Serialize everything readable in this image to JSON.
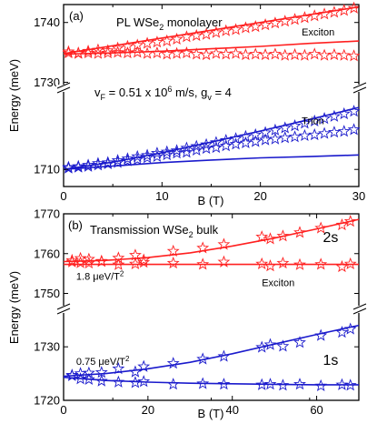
{
  "colors": {
    "red": "#ff2020",
    "blue": "#1a1acc"
  },
  "chart_data": [
    {
      "type": "scatter",
      "panel_label": "(a)",
      "title": "PL WSe2 monolayer",
      "title_main": "PL WSe",
      "title_sub": "2",
      "title_rest": " monolayer",
      "xlabel": "B (T)",
      "ylabel": "Energy (meV)",
      "xlim": [
        0,
        30
      ],
      "ylim_upper": [
        1729,
        1743
      ],
      "ylim_lower": [
        1706,
        1729
      ],
      "axis_break": true,
      "xticks": [
        "0",
        "10",
        "20",
        "30"
      ],
      "yticks": [
        "1710",
        "1730",
        "1740"
      ],
      "annotation_parts": {
        "p1": "v",
        "p1sub": "F",
        "p2": " = 0.51 x 10",
        "p2sup": "6",
        "p3": " m/s, g",
        "p3sub": "v",
        "p4": " = 4"
      },
      "series": [
        {
          "name": "Exciton",
          "color": "red",
          "marker": "star-open",
          "x": [
            0.5,
            1.5,
            2.5,
            3.5,
            4.5,
            5.5,
            6.5,
            7.5,
            8.5,
            9.5,
            10.5,
            11.5,
            12.5,
            13.5,
            14.5,
            15.5,
            16.5,
            17.5,
            18.5,
            19.5,
            20.5,
            21.5,
            22.5,
            23.5,
            24.5,
            25.5,
            26.5,
            27.5,
            28.5,
            29.5
          ],
          "y": [
            1735.1,
            1734.9,
            1735.2,
            1735.4,
            1735.3,
            1735.7,
            1736.0,
            1736.2,
            1736.5,
            1736.7,
            1736.9,
            1737.2,
            1737.6,
            1737.8,
            1738.0,
            1738.3,
            1738.6,
            1738.8,
            1739.1,
            1739.3,
            1739.6,
            1739.9,
            1740.2,
            1740.5,
            1740.8,
            1741.1,
            1741.4,
            1741.7,
            1742.0,
            1742.4
          ]
        },
        {
          "name": "Exciton",
          "color": "red",
          "marker": "star-open",
          "x": [
            0.5,
            1.5,
            2.5,
            3.5,
            4.5,
            5.5,
            6.5,
            7.5,
            8.5,
            9.5,
            10.5,
            11.5,
            12.5,
            13.5,
            14.5,
            15.5,
            16.5,
            17.5,
            18.5,
            19.5,
            20.5,
            21.5,
            22.5,
            23.5,
            24.5,
            25.5,
            26.5,
            27.5,
            28.5,
            29.5
          ],
          "y": [
            1734.9,
            1734.8,
            1734.9,
            1734.8,
            1734.9,
            1735.0,
            1734.9,
            1735.0,
            1734.8,
            1734.9,
            1734.7,
            1734.8,
            1734.9,
            1734.7,
            1734.6,
            1734.8,
            1734.7,
            1734.8,
            1734.6,
            1734.7,
            1734.6,
            1734.7,
            1734.5,
            1734.6,
            1734.5,
            1734.7,
            1734.5,
            1734.6,
            1734.5,
            1734.4
          ]
        },
        {
          "name": "Trion",
          "color": "blue",
          "marker": "star-open",
          "x": [
            0.5,
            1.5,
            2.5,
            3.5,
            4.5,
            5.5,
            6.5,
            7.5,
            8.5,
            9.5,
            10.5,
            11.5,
            12.5,
            13.5,
            14.5,
            15.5,
            16.5,
            17.5,
            18.5,
            19.5,
            20.5,
            21.5,
            22.5,
            23.5,
            24.5,
            25.5,
            26.5,
            27.5,
            28.5,
            29.5
          ],
          "y": [
            1710.5,
            1710.7,
            1711.0,
            1711.4,
            1711.6,
            1712.1,
            1712.5,
            1713.0,
            1713.3,
            1713.8,
            1714.1,
            1714.4,
            1715.0,
            1715.4,
            1715.8,
            1716.3,
            1716.8,
            1717.2,
            1717.7,
            1718.1,
            1718.6,
            1719.2,
            1719.7,
            1720.2,
            1720.8,
            1721.3,
            1721.9,
            1722.4,
            1723.0,
            1723.6
          ]
        },
        {
          "name": "Trion",
          "color": "blue",
          "marker": "star-open",
          "x": [
            0.5,
            1.5,
            2.5,
            3.5,
            4.5,
            5.5,
            6.5,
            7.5,
            8.5,
            9.5,
            10.5,
            11.5,
            12.5,
            13.5,
            14.5,
            15.5,
            16.5,
            17.5,
            18.5,
            19.5,
            20.5,
            21.5,
            22.5,
            23.5,
            24.5,
            25.5,
            26.5,
            27.5,
            28.5,
            29.5
          ],
          "y": [
            1710.3,
            1710.5,
            1710.7,
            1711.0,
            1711.3,
            1711.6,
            1712.0,
            1712.3,
            1712.7,
            1713.0,
            1713.4,
            1713.8,
            1714.0,
            1714.5,
            1714.9,
            1715.1,
            1715.5,
            1715.9,
            1716.2,
            1716.5,
            1716.9,
            1717.1,
            1717.4,
            1717.6,
            1717.9,
            1718.1,
            1718.4,
            1718.7,
            1718.9,
            1719.3
          ]
        }
      ],
      "fits": [
        {
          "color": "red",
          "x": [
            0,
            30
          ],
          "y": [
            1734.8,
            1742.6
          ]
        },
        {
          "color": "red",
          "x": [
            0,
            5,
            10,
            15,
            20,
            25,
            30
          ],
          "y": [
            1734.7,
            1734.9,
            1735.2,
            1735.6,
            1736.0,
            1736.5,
            1736.9
          ]
        },
        {
          "color": "blue",
          "x": [
            0,
            5,
            10,
            15,
            20,
            25,
            30
          ],
          "y": [
            1710.0,
            1711.7,
            1713.9,
            1716.4,
            1719.0,
            1721.7,
            1724.5
          ]
        },
        {
          "color": "blue",
          "x": [
            0,
            5,
            10,
            15,
            20,
            25,
            30
          ],
          "y": [
            1710.0,
            1710.8,
            1711.6,
            1712.2,
            1712.7,
            1713.0,
            1713.4
          ]
        }
      ],
      "labels": [
        {
          "text": "Exciton",
          "x": 24.2,
          "y": 1737.8
        },
        {
          "text": "Trion",
          "x": 24.2,
          "y": 1720.6
        }
      ]
    },
    {
      "type": "scatter",
      "panel_label": "(b)",
      "title": "Transmission WSe2 bulk",
      "title_main": "Transmission WSe",
      "title_sub": "2",
      "title_rest": " bulk",
      "xlabel": "B (T)",
      "ylabel": "Energy (meV)",
      "xlim": [
        0,
        70
      ],
      "ylim_upper": [
        1746,
        1770
      ],
      "ylim_lower": [
        1720,
        1737
      ],
      "axis_break": true,
      "xticks": [
        "0",
        "20",
        "40",
        "60"
      ],
      "yticks": [
        "1720",
        "1730",
        "1750",
        "1760",
        "1770"
      ],
      "series": [
        {
          "name": "2s",
          "color": "red",
          "marker": "star-open",
          "x": [
            2,
            4,
            6,
            9,
            13,
            17,
            19,
            26,
            33,
            38,
            47,
            49,
            52,
            56,
            61,
            66,
            68
          ],
          "y": [
            1758.3,
            1758.8,
            1758.6,
            1758.0,
            1758.9,
            1759.6,
            1758.4,
            1760.6,
            1761.4,
            1762.3,
            1764.2,
            1763.7,
            1764.4,
            1765.3,
            1766.4,
            1767.2,
            1768.1
          ]
        },
        {
          "name": "2s",
          "color": "red",
          "marker": "star-open",
          "x": [
            2,
            4,
            6,
            9,
            13,
            17,
            19,
            26,
            33,
            38,
            47,
            49,
            52,
            56,
            61,
            66,
            68
          ],
          "y": [
            1757.9,
            1757.7,
            1757.6,
            1758.1,
            1757.2,
            1757.4,
            1757.8,
            1757.6,
            1757.3,
            1757.9,
            1757.4,
            1756.9,
            1757.6,
            1757.2,
            1757.3,
            1756.7,
            1757.4
          ]
        },
        {
          "name": "1s",
          "color": "blue",
          "marker": "star-open",
          "x": [
            2,
            4,
            6,
            9,
            13,
            17,
            19,
            26,
            33,
            38,
            47,
            49,
            52,
            56,
            61,
            66,
            68
          ],
          "y": [
            1724.7,
            1725.0,
            1725.1,
            1725.2,
            1725.9,
            1725.3,
            1726.3,
            1726.9,
            1727.7,
            1728.2,
            1729.9,
            1730.4,
            1730.1,
            1730.8,
            1732.1,
            1732.7,
            1733.3
          ]
        },
        {
          "name": "1s",
          "color": "blue",
          "marker": "star-open",
          "x": [
            2,
            4,
            6,
            9,
            13,
            17,
            19,
            26,
            33,
            38,
            47,
            49,
            52,
            56,
            61,
            66,
            68
          ],
          "y": [
            1724.6,
            1724.0,
            1723.9,
            1723.6,
            1723.4,
            1723.3,
            1723.5,
            1723.0,
            1723.1,
            1723.0,
            1722.9,
            1723.0,
            1722.8,
            1723.0,
            1722.7,
            1722.9,
            1722.8
          ]
        }
      ],
      "fits": [
        {
          "color": "red",
          "x": [
            0,
            10,
            20,
            30,
            40,
            50,
            60,
            70
          ],
          "y": [
            1758.0,
            1758.3,
            1759.0,
            1760.2,
            1761.9,
            1763.9,
            1766.2,
            1768.6
          ]
        },
        {
          "color": "red",
          "x": [
            0,
            70
          ],
          "y": [
            1757.3,
            1757.3
          ]
        },
        {
          "color": "blue",
          "x": [
            0,
            10,
            20,
            30,
            40,
            50,
            60,
            70
          ],
          "y": [
            1724.5,
            1725.0,
            1725.9,
            1727.1,
            1728.7,
            1730.5,
            1732.3,
            1734.0
          ]
        },
        {
          "color": "blue",
          "x": [
            0,
            10,
            20,
            30,
            40,
            50,
            60,
            70
          ],
          "y": [
            1724.3,
            1723.7,
            1723.4,
            1723.2,
            1723.1,
            1723.0,
            1722.9,
            1722.9
          ]
        }
      ],
      "labels": [
        {
          "text": "2s",
          "x": 61.5,
          "y": 1762.9,
          "size": "big"
        },
        {
          "text": "Exciton",
          "x": 47,
          "y": 1751.8,
          "size": "small"
        },
        {
          "text": "1s",
          "x": 61.5,
          "y": 1726.6,
          "size": "big"
        }
      ],
      "coef_labels": [
        {
          "pre": "1.8 ",
          "mu": "μ",
          "post": "eV/T",
          "sup": "2",
          "x": 3,
          "y": 1753.4
        },
        {
          "pre": "0.75 ",
          "mu": "μ",
          "post": "eV/T",
          "sup": "2",
          "x": 3,
          "y": 1726.6
        }
      ]
    }
  ]
}
